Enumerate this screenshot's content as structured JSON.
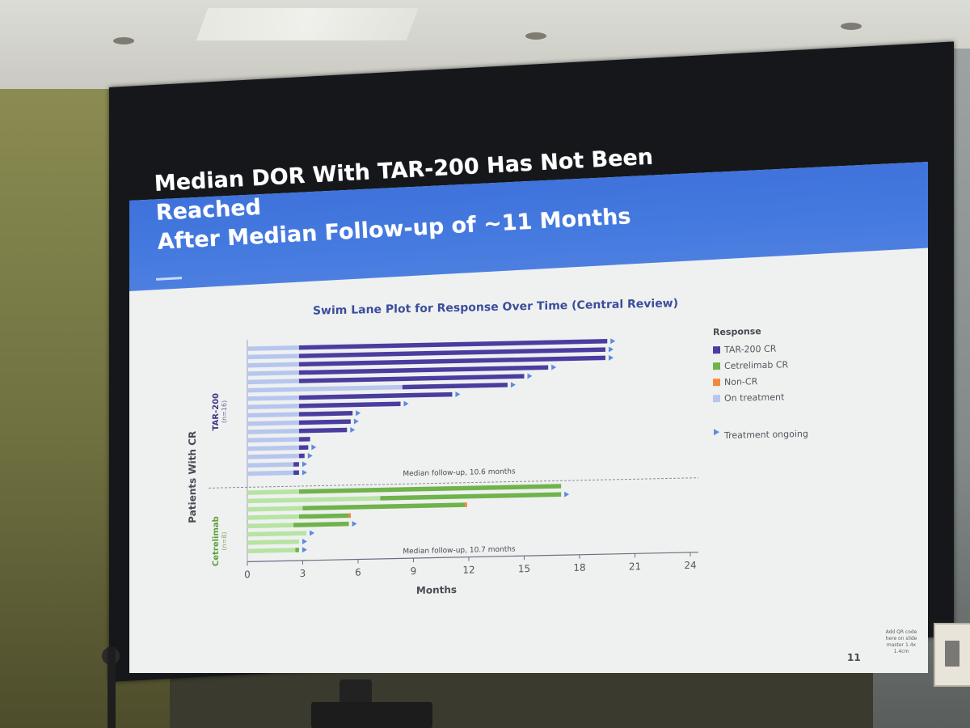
{
  "slide": {
    "title_line1": "Median DOR With TAR-200 Has Not Been Reached",
    "title_line2": "After Median Follow-up of ~11 Months",
    "slide_number": "11",
    "qr_note": "Add QR code here on slide master 1.4x 1.4cm"
  },
  "chart_data": {
    "type": "bar",
    "subtype": "swimlane",
    "title": "Swim Lane Plot for Response Over Time (Central Review)",
    "xlabel": "Months",
    "ylabel": "Patients With CR",
    "xlim": [
      0,
      24
    ],
    "xticks": [
      0,
      3,
      6,
      9,
      12,
      15,
      18,
      21,
      24
    ],
    "legend_title": "Response",
    "legend": [
      {
        "label": "TAR-200 CR",
        "color": "#4a3da0"
      },
      {
        "label": "Cetrelimab CR",
        "color": "#6fb34a"
      },
      {
        "label": "Non-CR",
        "color": "#f08a3a"
      },
      {
        "label": "On treatment",
        "color": "#b7c6ee"
      }
    ],
    "ongoing_label": "Treatment ongoing",
    "ongoing_color": "#5b8be0",
    "groups": [
      {
        "name": "TAR-200",
        "n_label": "(n=16)",
        "median_label": "Median follow-up, 10.6 months",
        "median_value": 10.6,
        "bar_color": "#4a3da0",
        "treatment_color": "#b7c6ee",
        "patients": [
          {
            "treatment_end": 2.8,
            "end": 19.5,
            "ongoing": true
          },
          {
            "treatment_end": 2.8,
            "end": 19.4,
            "ongoing": true
          },
          {
            "treatment_end": 2.8,
            "end": 19.4,
            "ongoing": true
          },
          {
            "treatment_end": 2.8,
            "end": 16.3,
            "ongoing": true
          },
          {
            "treatment_end": 2.8,
            "end": 15.0,
            "ongoing": true
          },
          {
            "treatment_end": 8.4,
            "end": 14.1,
            "ongoing": true
          },
          {
            "treatment_end": 2.8,
            "end": 11.1,
            "ongoing": true
          },
          {
            "treatment_end": 2.8,
            "end": 8.3,
            "ongoing": true
          },
          {
            "treatment_end": 2.8,
            "end": 5.7,
            "ongoing": true
          },
          {
            "treatment_end": 2.8,
            "end": 5.6,
            "ongoing": true
          },
          {
            "treatment_end": 2.8,
            "end": 5.4,
            "ongoing": true
          },
          {
            "treatment_end": 2.8,
            "end": 3.4,
            "ongoing": false
          },
          {
            "treatment_end": 2.8,
            "end": 3.3,
            "ongoing": true
          },
          {
            "treatment_end": 2.8,
            "end": 3.1,
            "ongoing": true
          },
          {
            "treatment_end": 2.5,
            "end": 2.8,
            "ongoing": true
          },
          {
            "treatment_end": 2.5,
            "end": 2.8,
            "ongoing": true
          }
        ]
      },
      {
        "name": "Cetrelimab",
        "n_label": "(n=8)",
        "median_label": "Median follow-up, 10.7 months",
        "median_value": 10.7,
        "bar_color": "#6fb34a",
        "treatment_color": "#b7e3a3",
        "patients": [
          {
            "treatment_end": 2.8,
            "end": 17.0,
            "ongoing": false
          },
          {
            "treatment_end": 7.2,
            "end": 17.0,
            "ongoing": true
          },
          {
            "treatment_end": 3.0,
            "end": 11.9,
            "ongoing": false,
            "non_cr_tail": true
          },
          {
            "treatment_end": 2.8,
            "end": 5.6,
            "ongoing": false,
            "non_cr_tail": true
          },
          {
            "treatment_end": 2.5,
            "end": 5.5,
            "ongoing": true
          },
          {
            "treatment_end": 3.2,
            "end": 3.2,
            "ongoing": true
          },
          {
            "treatment_end": 2.8,
            "end": 2.8,
            "ongoing": true
          },
          {
            "treatment_end": 2.6,
            "end": 2.8,
            "ongoing": true
          }
        ]
      }
    ]
  }
}
